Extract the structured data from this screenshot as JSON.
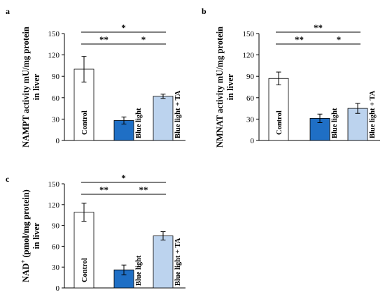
{
  "colors": {
    "control_fill": "#ffffff",
    "blue_light_fill": "#1f6fc5",
    "blue_light_ta_fill": "#bcd3ee",
    "stroke": "#000000"
  },
  "chart_data": [
    {
      "type": "bar",
      "panel": "a",
      "ylabel": [
        "NAMPT activity mU/mg protein",
        "in liver"
      ],
      "ylim": [
        0,
        150
      ],
      "yticks": [
        0,
        30,
        60,
        90,
        120,
        150
      ],
      "categories": [
        "Control",
        "Blue light",
        "Blue light + TA"
      ],
      "values": [
        100,
        28,
        62
      ],
      "errors": [
        18,
        5,
        3
      ],
      "significance": [
        {
          "from": 0,
          "to": 2,
          "label": "*",
          "level": 0
        },
        {
          "from": 0,
          "to": 1,
          "label": "**",
          "level": 1
        },
        {
          "from": 1,
          "to": 2,
          "label": "*",
          "level": 1
        }
      ],
      "grid": false
    },
    {
      "type": "bar",
      "panel": "b",
      "ylabel": [
        "NMNAT activity mU/mg protein",
        "in liver"
      ],
      "ylim": [
        0,
        150
      ],
      "yticks": [
        0,
        30,
        60,
        90,
        120,
        150
      ],
      "categories": [
        "Control",
        "Blue light",
        "Blue light + TA"
      ],
      "values": [
        87,
        31,
        45
      ],
      "errors": [
        9,
        6,
        7
      ],
      "significance": [
        {
          "from": 0,
          "to": 2,
          "label": "**",
          "level": 0
        },
        {
          "from": 0,
          "to": 1,
          "label": "**",
          "level": 1
        },
        {
          "from": 1,
          "to": 2,
          "label": "*",
          "level": 1
        }
      ],
      "grid": false
    },
    {
      "type": "bar",
      "panel": "c",
      "ylabel": [
        "NAD",
        "+",
        " (pmol/mg protein)",
        "in liver"
      ],
      "ylim": [
        0,
        150
      ],
      "yticks": [
        0,
        30,
        60,
        90,
        120,
        150
      ],
      "categories": [
        "Control",
        "Blue light",
        "Blue light + TA"
      ],
      "values": [
        109,
        26,
        75
      ],
      "errors": [
        13,
        7,
        6
      ],
      "significance": [
        {
          "from": 0,
          "to": 2,
          "label": "*",
          "level": 0
        },
        {
          "from": 0,
          "to": 1,
          "label": "**",
          "level": 1
        },
        {
          "from": 1,
          "to": 2,
          "label": "**",
          "level": 1
        }
      ],
      "grid": false
    }
  ]
}
